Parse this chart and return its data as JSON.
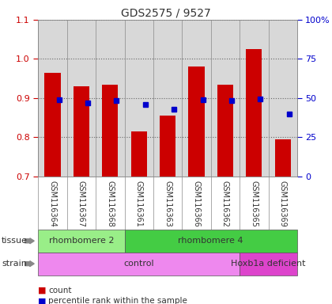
{
  "title": "GDS2575 / 9527",
  "samples": [
    "GSM116364",
    "GSM116367",
    "GSM116368",
    "GSM116361",
    "GSM116363",
    "GSM116366",
    "GSM116362",
    "GSM116365",
    "GSM116369"
  ],
  "counts": [
    0.965,
    0.93,
    0.935,
    0.815,
    0.855,
    0.98,
    0.935,
    1.025,
    0.795
  ],
  "percentile_ranks": [
    0.895,
    0.888,
    0.893,
    0.883,
    0.872,
    0.895,
    0.893,
    0.898,
    0.86
  ],
  "ylim": [
    0.7,
    1.1
  ],
  "yticks_left": [
    0.7,
    0.8,
    0.9,
    1.0,
    1.1
  ],
  "yticks_right_vals": [
    0.7,
    0.8,
    0.9,
    1.0,
    1.1
  ],
  "yticks_right_labels": [
    "0",
    "25",
    "50",
    "75",
    "100%"
  ],
  "bar_color": "#cc0000",
  "dot_color": "#0000cc",
  "tissue_groups": [
    {
      "label": "rhombomere 2",
      "start": 0,
      "end": 3,
      "color": "#99ee88"
    },
    {
      "label": "rhombomere 4",
      "start": 3,
      "end": 9,
      "color": "#44cc44"
    }
  ],
  "strain_groups": [
    {
      "label": "control",
      "start": 0,
      "end": 7,
      "color": "#ee88ee"
    },
    {
      "label": "Hoxb1a deficient",
      "start": 7,
      "end": 9,
      "color": "#dd44cc"
    }
  ],
  "legend_count_label": "count",
  "legend_pct_label": "percentile rank within the sample",
  "bg_color": "#ffffff",
  "plot_bg_color": "#d8d8d8",
  "grid_color": "#888888",
  "title_color": "#333333",
  "left_tick_color": "#cc0000",
  "right_tick_color": "#0000cc",
  "label_row_color": "#cccccc"
}
